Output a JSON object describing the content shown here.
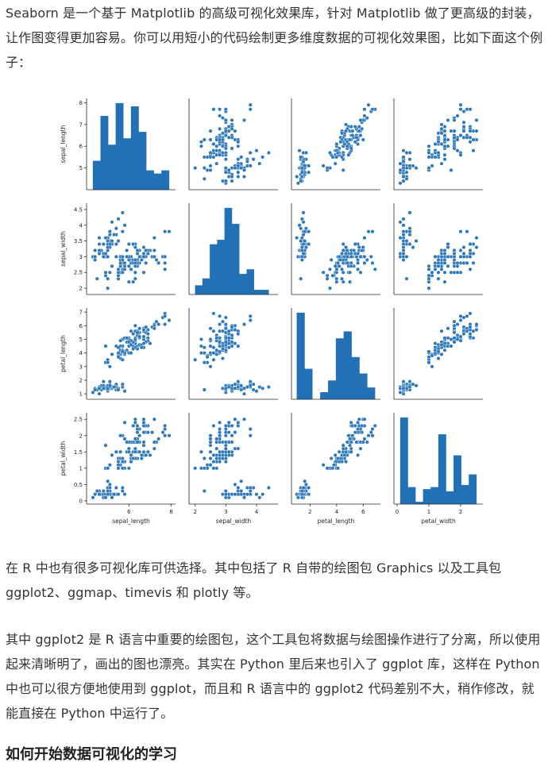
{
  "paragraphs": {
    "intro": "Seaborn 是一个基于 Matplotlib 的高级可视化效果库，针对 Matplotlib 做了更高级的封装，让作图变得更加容易。你可以用短小的代码绘制更多维度数据的可视化效果图，比如下面这个例子：",
    "r_libs": "在 R 中也有很多可视化库可供选择。其中包括了 R 自带的绘图包 Graphics 以及工具包 ggplot2、ggmap、timevis 和 plotly 等。",
    "ggplot": "其中 ggplot2 是 R 语言中重要的绘图包，这个工具包将数据与绘图操作进行了分离，所以使用起来清晰明了，画出的图也漂亮。其实在 Python 里后来也引入了 ggplot 库，这样在 Python 中也可以很方便地使用到 ggplot，而且和 R 语言中的 ggplot2 代码差别不大，稍作修改，就能直接在 Python 中运行了。"
  },
  "section_heading": "如何开始数据可视化的学习",
  "colors": {
    "point": "#2f78b9",
    "bar": "#2270b6",
    "axis": "#262626"
  },
  "chart_data": {
    "type": "scatter",
    "subtype": "pairplot",
    "variables": [
      "sepal_length",
      "sepal_width",
      "petal_length",
      "petal_width"
    ],
    "axes": {
      "sepal_length": {
        "range": [
          4.0,
          8.2
        ],
        "ticks": [
          6,
          8
        ],
        "ticks_y": [
          5,
          6,
          7,
          8
        ]
      },
      "sepal_width": {
        "range": [
          1.8,
          4.7
        ],
        "ticks": [
          2,
          3,
          4
        ],
        "ticks_y": [
          2.0,
          2.5,
          3.0,
          3.5,
          4.0,
          4.5
        ]
      },
      "petal_length": {
        "range": [
          0.6,
          7.3
        ],
        "ticks": [
          2,
          4,
          6
        ],
        "ticks_y": [
          1,
          2,
          3,
          4,
          5,
          6,
          7
        ]
      },
      "petal_width": {
        "range": [
          -0.1,
          2.7
        ],
        "ticks": [
          0,
          1,
          2
        ],
        "ticks_y": [
          0.0,
          0.5,
          1.0,
          1.5,
          2.0,
          2.5
        ]
      }
    },
    "histograms": {
      "sepal_length": {
        "edges": [
          4.3,
          4.66,
          5.02,
          5.38,
          5.74,
          6.1,
          6.46,
          6.82,
          7.18,
          7.54,
          7.9
        ],
        "counts": [
          9,
          23,
          14,
          27,
          16,
          26,
          18,
          6,
          5,
          6
        ]
      },
      "sepal_width": {
        "edges": [
          2.0,
          2.24,
          2.48,
          2.72,
          2.96,
          3.2,
          3.44,
          3.68,
          3.92,
          4.16,
          4.4
        ],
        "counts": [
          4,
          7,
          22,
          24,
          38,
          31,
          9,
          11,
          2,
          2
        ]
      },
      "petal_length": {
        "edges": [
          1.0,
          1.59,
          2.18,
          2.77,
          3.36,
          3.95,
          4.54,
          5.13,
          5.72,
          6.31,
          6.9
        ],
        "counts": [
          37,
          13,
          0,
          3,
          8,
          26,
          29,
          18,
          11,
          5
        ]
      },
      "petal_width": {
        "edges": [
          0.1,
          0.34,
          0.58,
          0.82,
          1.06,
          1.3,
          1.54,
          1.78,
          2.02,
          2.26,
          2.5
        ],
        "counts": [
          41,
          8,
          1,
          7,
          8,
          33,
          6,
          23,
          9,
          14
        ]
      }
    },
    "observations": [
      [
        5.1,
        3.5,
        1.4,
        0.2
      ],
      [
        4.9,
        3.0,
        1.4,
        0.2
      ],
      [
        4.7,
        3.2,
        1.3,
        0.2
      ],
      [
        4.6,
        3.1,
        1.5,
        0.2
      ],
      [
        5.0,
        3.6,
        1.4,
        0.2
      ],
      [
        5.4,
        3.9,
        1.7,
        0.4
      ],
      [
        4.6,
        3.4,
        1.4,
        0.3
      ],
      [
        5.0,
        3.4,
        1.5,
        0.2
      ],
      [
        4.4,
        2.9,
        1.4,
        0.2
      ],
      [
        4.9,
        3.1,
        1.5,
        0.1
      ],
      [
        5.4,
        3.7,
        1.5,
        0.2
      ],
      [
        4.8,
        3.4,
        1.6,
        0.2
      ],
      [
        4.8,
        3.0,
        1.4,
        0.1
      ],
      [
        4.3,
        3.0,
        1.1,
        0.1
      ],
      [
        5.8,
        4.0,
        1.2,
        0.2
      ],
      [
        5.7,
        4.4,
        1.5,
        0.4
      ],
      [
        5.4,
        3.9,
        1.3,
        0.4
      ],
      [
        5.1,
        3.5,
        1.4,
        0.3
      ],
      [
        5.7,
        3.8,
        1.7,
        0.3
      ],
      [
        5.1,
        3.8,
        1.5,
        0.3
      ],
      [
        5.4,
        3.4,
        1.7,
        0.2
      ],
      [
        5.1,
        3.7,
        1.5,
        0.4
      ],
      [
        4.6,
        3.6,
        1.0,
        0.2
      ],
      [
        5.1,
        3.3,
        1.7,
        0.5
      ],
      [
        4.8,
        3.4,
        1.9,
        0.2
      ],
      [
        5.0,
        3.0,
        1.6,
        0.2
      ],
      [
        5.0,
        3.4,
        1.6,
        0.4
      ],
      [
        5.2,
        3.5,
        1.5,
        0.2
      ],
      [
        5.2,
        3.4,
        1.4,
        0.2
      ],
      [
        4.7,
        3.2,
        1.6,
        0.2
      ],
      [
        4.8,
        3.1,
        1.6,
        0.2
      ],
      [
        5.4,
        3.4,
        1.5,
        0.4
      ],
      [
        5.2,
        4.1,
        1.5,
        0.1
      ],
      [
        5.5,
        4.2,
        1.4,
        0.2
      ],
      [
        4.9,
        3.1,
        1.5,
        0.2
      ],
      [
        5.0,
        3.2,
        1.2,
        0.2
      ],
      [
        5.5,
        3.5,
        1.3,
        0.2
      ],
      [
        4.9,
        3.6,
        1.4,
        0.1
      ],
      [
        4.4,
        3.0,
        1.3,
        0.2
      ],
      [
        5.1,
        3.4,
        1.5,
        0.2
      ],
      [
        5.0,
        3.5,
        1.3,
        0.3
      ],
      [
        4.5,
        2.3,
        1.3,
        0.3
      ],
      [
        4.4,
        3.2,
        1.3,
        0.2
      ],
      [
        5.0,
        3.5,
        1.6,
        0.6
      ],
      [
        5.1,
        3.8,
        1.9,
        0.4
      ],
      [
        4.8,
        3.0,
        1.4,
        0.3
      ],
      [
        5.1,
        3.8,
        1.6,
        0.2
      ],
      [
        4.6,
        3.2,
        1.4,
        0.2
      ],
      [
        5.3,
        3.7,
        1.5,
        0.2
      ],
      [
        5.0,
        3.3,
        1.4,
        0.2
      ],
      [
        7.0,
        3.2,
        4.7,
        1.4
      ],
      [
        6.4,
        3.2,
        4.5,
        1.5
      ],
      [
        6.9,
        3.1,
        4.9,
        1.5
      ],
      [
        5.5,
        2.3,
        4.0,
        1.3
      ],
      [
        6.5,
        2.8,
        4.6,
        1.5
      ],
      [
        5.7,
        2.8,
        4.5,
        1.3
      ],
      [
        6.3,
        3.3,
        4.7,
        1.6
      ],
      [
        4.9,
        2.4,
        3.3,
        1.0
      ],
      [
        6.6,
        2.9,
        4.6,
        1.3
      ],
      [
        5.2,
        2.7,
        3.9,
        1.4
      ],
      [
        5.0,
        2.0,
        3.5,
        1.0
      ],
      [
        5.9,
        3.0,
        4.2,
        1.5
      ],
      [
        6.0,
        2.2,
        4.0,
        1.0
      ],
      [
        6.1,
        2.9,
        4.7,
        1.4
      ],
      [
        5.6,
        2.9,
        3.6,
        1.3
      ],
      [
        6.7,
        3.1,
        4.4,
        1.4
      ],
      [
        5.6,
        3.0,
        4.5,
        1.5
      ],
      [
        5.8,
        2.7,
        4.1,
        1.0
      ],
      [
        6.2,
        2.2,
        4.5,
        1.5
      ],
      [
        5.6,
        2.5,
        3.9,
        1.1
      ],
      [
        5.9,
        3.2,
        4.8,
        1.8
      ],
      [
        6.1,
        2.8,
        4.0,
        1.3
      ],
      [
        6.3,
        2.5,
        4.9,
        1.5
      ],
      [
        6.1,
        2.8,
        4.7,
        1.2
      ],
      [
        6.4,
        2.9,
        4.3,
        1.3
      ],
      [
        6.6,
        3.0,
        4.4,
        1.4
      ],
      [
        6.8,
        2.8,
        4.8,
        1.4
      ],
      [
        6.7,
        3.0,
        5.0,
        1.7
      ],
      [
        6.0,
        2.9,
        4.5,
        1.5
      ],
      [
        5.7,
        2.6,
        3.5,
        1.0
      ],
      [
        5.5,
        2.4,
        3.8,
        1.1
      ],
      [
        5.5,
        2.4,
        3.7,
        1.0
      ],
      [
        5.8,
        2.7,
        3.9,
        1.2
      ],
      [
        6.0,
        2.7,
        5.1,
        1.6
      ],
      [
        5.4,
        3.0,
        4.5,
        1.5
      ],
      [
        6.0,
        3.4,
        4.5,
        1.6
      ],
      [
        6.7,
        3.1,
        4.7,
        1.5
      ],
      [
        6.3,
        2.3,
        4.4,
        1.3
      ],
      [
        5.6,
        3.0,
        4.1,
        1.3
      ],
      [
        5.5,
        2.5,
        4.0,
        1.3
      ],
      [
        5.5,
        2.6,
        4.4,
        1.2
      ],
      [
        6.1,
        3.0,
        4.6,
        1.4
      ],
      [
        5.8,
        2.6,
        4.0,
        1.2
      ],
      [
        5.0,
        2.3,
        3.3,
        1.0
      ],
      [
        5.6,
        2.7,
        4.2,
        1.3
      ],
      [
        5.7,
        3.0,
        4.2,
        1.2
      ],
      [
        5.7,
        2.9,
        4.2,
        1.3
      ],
      [
        6.2,
        2.9,
        4.3,
        1.3
      ],
      [
        5.1,
        2.5,
        3.0,
        1.1
      ],
      [
        5.7,
        2.8,
        4.1,
        1.3
      ],
      [
        6.3,
        3.3,
        6.0,
        2.5
      ],
      [
        5.8,
        2.7,
        5.1,
        1.9
      ],
      [
        7.1,
        3.0,
        5.9,
        2.1
      ],
      [
        6.3,
        2.9,
        5.6,
        1.8
      ],
      [
        6.5,
        3.0,
        5.8,
        2.2
      ],
      [
        7.6,
        3.0,
        6.6,
        2.1
      ],
      [
        4.9,
        2.5,
        4.5,
        1.7
      ],
      [
        7.3,
        2.9,
        6.3,
        1.8
      ],
      [
        6.7,
        2.5,
        5.8,
        1.8
      ],
      [
        7.2,
        3.6,
        6.1,
        2.5
      ],
      [
        6.5,
        3.2,
        5.1,
        2.0
      ],
      [
        6.4,
        2.7,
        5.3,
        1.9
      ],
      [
        6.8,
        3.0,
        5.5,
        2.1
      ],
      [
        5.7,
        2.5,
        5.0,
        2.0
      ],
      [
        5.8,
        2.8,
        5.1,
        2.4
      ],
      [
        6.4,
        3.2,
        5.3,
        2.3
      ],
      [
        6.5,
        3.0,
        5.5,
        1.8
      ],
      [
        7.7,
        3.8,
        6.7,
        2.2
      ],
      [
        7.7,
        2.6,
        6.9,
        2.3
      ],
      [
        6.0,
        2.2,
        5.0,
        1.5
      ],
      [
        6.9,
        3.2,
        5.7,
        2.3
      ],
      [
        5.6,
        2.8,
        4.9,
        2.0
      ],
      [
        7.7,
        2.8,
        6.7,
        2.0
      ],
      [
        6.3,
        2.7,
        4.9,
        1.8
      ],
      [
        6.7,
        3.3,
        5.7,
        2.1
      ],
      [
        7.2,
        3.2,
        6.0,
        1.8
      ],
      [
        6.2,
        2.8,
        4.8,
        1.8
      ],
      [
        6.1,
        3.0,
        4.9,
        1.8
      ],
      [
        6.4,
        2.8,
        5.6,
        2.1
      ],
      [
        7.2,
        3.0,
        5.8,
        1.6
      ],
      [
        7.4,
        2.8,
        6.1,
        1.9
      ],
      [
        7.9,
        3.8,
        6.4,
        2.0
      ],
      [
        6.4,
        2.8,
        5.6,
        2.2
      ],
      [
        6.3,
        2.8,
        5.1,
        1.5
      ],
      [
        6.1,
        2.6,
        5.6,
        1.4
      ],
      [
        7.7,
        3.0,
        6.1,
        2.3
      ],
      [
        6.3,
        3.4,
        5.6,
        2.4
      ],
      [
        6.4,
        3.1,
        5.5,
        1.8
      ],
      [
        6.0,
        3.0,
        4.8,
        1.8
      ],
      [
        6.9,
        3.1,
        5.4,
        2.1
      ],
      [
        6.7,
        3.1,
        5.6,
        2.4
      ],
      [
        6.9,
        3.1,
        5.1,
        2.3
      ],
      [
        5.8,
        2.7,
        5.1,
        1.9
      ],
      [
        6.8,
        3.2,
        5.9,
        2.3
      ],
      [
        6.7,
        3.3,
        5.7,
        2.5
      ],
      [
        6.7,
        3.0,
        5.2,
        2.3
      ],
      [
        6.3,
        2.5,
        5.0,
        1.9
      ],
      [
        6.5,
        3.0,
        5.2,
        2.0
      ],
      [
        6.2,
        3.4,
        5.4,
        2.3
      ],
      [
        5.9,
        3.0,
        5.1,
        1.8
      ]
    ]
  }
}
